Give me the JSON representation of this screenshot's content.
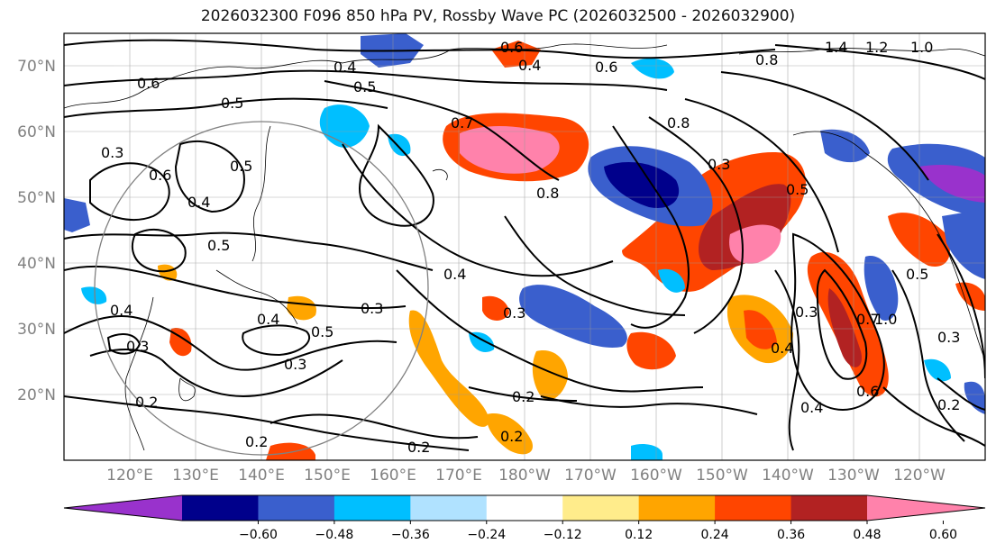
{
  "title": "2026032300 F096 850 hPa PV, Rossby Wave PC (2026032500 - 2026032900)",
  "lat_labels": [
    "70°N",
    "60°N",
    "50°N",
    "40°N",
    "30°N",
    "20°N"
  ],
  "lon_labels": [
    "120°E",
    "130°E",
    "140°E",
    "150°E",
    "160°E",
    "170°E",
    "180°W",
    "170°W",
    "160°W",
    "150°W",
    "140°W",
    "130°W",
    "120°W"
  ],
  "colorbar": {
    "colors": [
      "#9932cc",
      "#00008b",
      "#3a5fcd",
      "#00bfff",
      "#b0e2ff",
      "#ffffff",
      "#ffec8b",
      "#ffa500",
      "#ff4500",
      "#b22222",
      "#ff82ab"
    ],
    "tick_labels": [
      "−0.60",
      "−0.48",
      "−0.36",
      "−0.24",
      "−0.12",
      "0.12",
      "0.24",
      "0.36",
      "0.48",
      "0.60"
    ]
  },
  "contour_labels": [
    "0.6",
    "0.4",
    "0.6",
    "1.4",
    "1.2",
    "1.0",
    "0.8",
    "0.4",
    "0.5",
    "0.6",
    "0.7",
    "0.8",
    "0.5",
    "0.3",
    "0.6",
    "0.4",
    "0.5",
    "0.8",
    "0.5",
    "0.3",
    "0.4",
    "0.3",
    "0.5",
    "0.4",
    "0.3",
    "0.3",
    "0.3",
    "0.4",
    "0.2",
    "0.2",
    "0.2",
    "0.2",
    "0.4",
    "0.6",
    "1.0",
    "0.7",
    "0.5",
    "0.5",
    "0.4",
    "0.3",
    "0.2",
    "0.2",
    "0.3"
  ]
}
